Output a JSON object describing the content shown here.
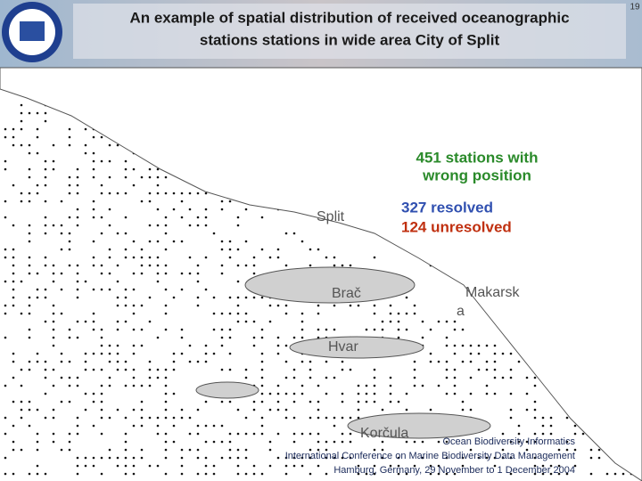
{
  "header": {
    "title_lines": [
      "An example of spatial distribution of received oceanographic",
      "stations stations in wide area City of Split"
    ],
    "slide_number": "19"
  },
  "map": {
    "summary_lines": [
      "451 stations with",
      "wrong position"
    ],
    "resolved": "327 resolved",
    "unresolved": "124 unresolved",
    "places": {
      "split": "Split",
      "brac": "Brač",
      "makarska_lines": [
        "Makarsk",
        "a"
      ],
      "hvar": "Hvar",
      "korcula": "Korčula"
    }
  },
  "footer": {
    "lines": [
      "Ocean Biodiversity Informatics",
      "International Conference on Marine Biodiversity Data Management",
      "Hamburg, Germany, 29 November to 1 December 2004"
    ]
  }
}
